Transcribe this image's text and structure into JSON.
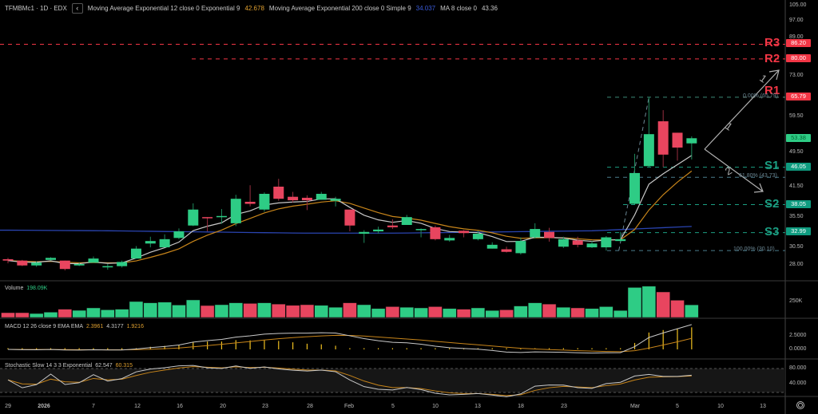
{
  "header": {
    "symbol": "TFMBMc1 · 1D · EDX",
    "collapse_icon": "‹",
    "ema_label": "Moving Average Exponential 12 close 0 Exponential 9",
    "ema_value": "42.678",
    "sma200_label": "Moving Average Exponential 200 close 0 Simple 9",
    "sma200_value": "34.037",
    "ma8_label": "MA 8 close 0",
    "ma8_value": "43.36"
  },
  "colors": {
    "up": "#2ecc85",
    "down": "#e8455f",
    "ema": "#c9c9c9",
    "ema_signal": "#c8851a",
    "ma200": "#2a44b0",
    "resistance": "#f23645",
    "support": "#1b9e82",
    "macd_hist": "#f0c020"
  },
  "price_axis": {
    "scale": "log",
    "range": [
      28,
      105
    ],
    "ticks": [
      "105.00",
      "97.00",
      "89.00",
      "73.00",
      "59.50",
      "49.50",
      "41.50",
      "35.50",
      "30.50",
      "28.00"
    ]
  },
  "price_tags": {
    "r3": "86.20",
    "r2": "80.00",
    "r1": "65.79",
    "last": "53.38",
    "s1": "46.05",
    "s2": "38.05",
    "s3": "32.99"
  },
  "pivots": {
    "r3": "R3",
    "r2": "R2",
    "r1": "R1",
    "s1": "S1",
    "s2": "S2",
    "s3": "S3"
  },
  "fib": {
    "level_0": "0.00% (65.79)",
    "level_618": "61.80% (43.73)",
    "level_100": "100.00% (30.10)"
  },
  "wave_labels": {
    "up1": "1",
    "up2": "1",
    "down": "2"
  },
  "candles": [
    [
      28.8,
      29.0,
      28.2,
      28.6
    ],
    [
      28.6,
      28.7,
      27.8,
      27.9
    ],
    [
      27.9,
      28.5,
      27.7,
      28.3
    ],
    [
      28.7,
      29.1,
      28.6,
      29.0
    ],
    [
      28.6,
      28.6,
      27.2,
      27.4
    ],
    [
      27.9,
      28.3,
      27.8,
      28.1
    ],
    [
      28.3,
      29.2,
      28.3,
      28.9
    ],
    [
      27.7,
      28.1,
      27.3,
      27.8
    ],
    [
      27.8,
      28.6,
      27.6,
      28.4
    ],
    [
      28.9,
      30.8,
      28.9,
      30.4
    ],
    [
      31.2,
      32.3,
      30.6,
      31.6
    ],
    [
      30.6,
      32.7,
      30.6,
      31.9
    ],
    [
      32.1,
      33.7,
      31.9,
      33.2
    ],
    [
      34.2,
      38.3,
      34.1,
      37.1
    ],
    [
      35.7,
      35.7,
      33.2,
      35.6
    ],
    [
      35.7,
      37.2,
      34.5,
      35.9
    ],
    [
      34.6,
      40.0,
      34.1,
      39.2
    ],
    [
      38.6,
      42.0,
      37.7,
      38.2
    ],
    [
      37.1,
      40.5,
      36.7,
      40.2
    ],
    [
      41.7,
      43.4,
      38.8,
      39.2
    ],
    [
      39.6,
      40.6,
      38.5,
      38.9
    ],
    [
      39.4,
      39.9,
      37.0,
      38.9
    ],
    [
      39.0,
      40.6,
      39.0,
      40.2
    ],
    [
      38.8,
      39.6,
      37.7,
      39.2
    ],
    [
      37.1,
      37.1,
      33.2,
      34.2
    ],
    [
      32.8,
      33.4,
      31.3,
      33.1
    ],
    [
      33.2,
      34.0,
      32.8,
      33.5
    ],
    [
      34.2,
      35.3,
      33.6,
      33.9
    ],
    [
      34.3,
      36.1,
      34.3,
      35.7
    ],
    [
      33.5,
      33.7,
      32.2,
      33.6
    ],
    [
      33.9,
      34.2,
      31.7,
      31.9
    ],
    [
      31.7,
      32.6,
      31.5,
      32.1
    ],
    [
      33.3,
      33.4,
      32.2,
      32.9
    ],
    [
      31.9,
      33.3,
      31.7,
      32.8
    ],
    [
      30.4,
      31.4,
      30.4,
      31.0
    ],
    [
      30.3,
      30.7,
      29.8,
      29.9
    ],
    [
      29.7,
      32.2,
      29.5,
      31.6
    ],
    [
      32.2,
      34.6,
      32.0,
      33.6
    ],
    [
      33.1,
      33.8,
      31.5,
      32.1
    ],
    [
      30.7,
      32.3,
      30.5,
      31.9
    ],
    [
      31.7,
      32.3,
      30.6,
      31.0
    ],
    [
      30.6,
      31.6,
      30.5,
      31.2
    ],
    [
      30.6,
      32.4,
      30.1,
      32.2
    ],
    [
      31.6,
      33.1,
      31.5,
      31.9
    ],
    [
      38.2,
      49.3,
      38.1,
      44.7
    ],
    [
      46.3,
      65.79,
      46.0,
      54.5
    ],
    [
      58.2,
      61.6,
      46.1,
      49.1
    ],
    [
      54.9,
      54.9,
      47.6,
      50.9
    ],
    [
      52.0,
      53.9,
      47.9,
      53.38
    ]
  ],
  "ma200_anchors": [
    33.4,
    33.3,
    33.1,
    32.9,
    32.9,
    33.1,
    33.3,
    34.04
  ],
  "volume": {
    "label": "Volume",
    "value": "198.09K",
    "axis_tick": "250K",
    "values": [
      75,
      75,
      62,
      83,
      130,
      112,
      150,
      120,
      130,
      250,
      230,
      240,
      195,
      275,
      187,
      200,
      230,
      220,
      230,
      210,
      190,
      200,
      190,
      160,
      230,
      200,
      140,
      170,
      160,
      150,
      170,
      140,
      130,
      150,
      110,
      120,
      180,
      230,
      210,
      160,
      150,
      140,
      170,
      110,
      470,
      490,
      400,
      270,
      198.09
    ]
  },
  "macd": {
    "label": "MACD 12 26 close 9 EMA EMA",
    "v1": "2.3961",
    "v2": "4.3177",
    "v3": "1.9216",
    "ticks": [
      "2.5000",
      "0.0000"
    ]
  },
  "stoch": {
    "label": "Stochastic Slow 14 3 3 Exponential",
    "k": "62.547",
    "d": "60.315",
    "ticks": [
      "80.000",
      "40.000"
    ]
  },
  "time_axis": [
    "29",
    "2026",
    "7",
    "12",
    "16",
    "20",
    "23",
    "28",
    "Feb",
    "5",
    "10",
    "13",
    "18",
    "23",
    "Mar",
    "5",
    "10",
    "13"
  ],
  "settings_icon": "gear-icon"
}
